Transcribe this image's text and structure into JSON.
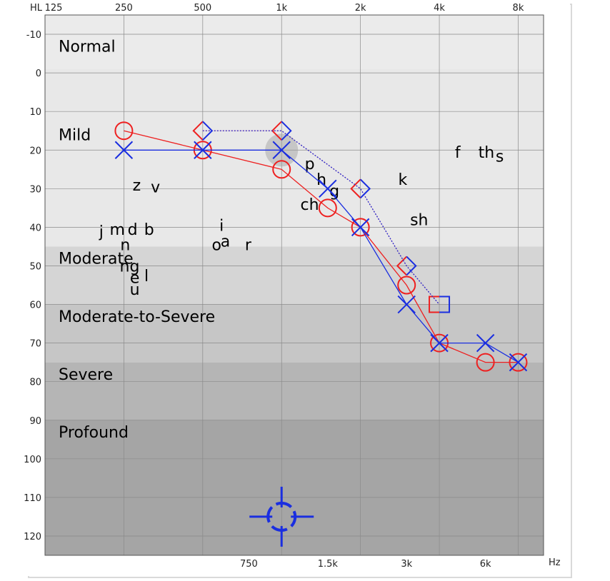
{
  "chart_data": {
    "type": "line",
    "title": "",
    "x_unit_label": "Hz",
    "y_unit_label": "HL",
    "x_scale": "log",
    "xlim": [
      125,
      10000
    ],
    "ylim": [
      -15,
      125
    ],
    "y_reversed": true,
    "grid": true,
    "x_top_ticks": [
      {
        "value": 125,
        "label": "125"
      },
      {
        "value": 250,
        "label": "250"
      },
      {
        "value": 500,
        "label": "500"
      },
      {
        "value": 1000,
        "label": "1k"
      },
      {
        "value": 2000,
        "label": "2k"
      },
      {
        "value": 4000,
        "label": "4k"
      },
      {
        "value": 8000,
        "label": "8k"
      }
    ],
    "x_bottom_ticks": [
      {
        "value": 750,
        "label": "750"
      },
      {
        "value": 1500,
        "label": "1.5k"
      },
      {
        "value": 3000,
        "label": "3k"
      },
      {
        "value": 6000,
        "label": "6k"
      }
    ],
    "y_ticks": [
      -10,
      0,
      10,
      20,
      30,
      40,
      50,
      60,
      70,
      80,
      90,
      100,
      110,
      120
    ],
    "zones": [
      {
        "label": "Normal",
        "from": -15,
        "to": 45,
        "label_y": -7,
        "color": "#e8e8e8"
      },
      {
        "label": "Mild",
        "from": -15,
        "to": 45,
        "label_y": 16,
        "color": "#e8e8e8"
      },
      {
        "label": "Moderate",
        "from": 45,
        "to": 60,
        "label_y": 48,
        "color": "#d5d5d5"
      },
      {
        "label": "Moderate-to-Severe",
        "from": 60,
        "to": 75,
        "label_y": 63,
        "color": "#c6c6c6"
      },
      {
        "label": "Severe",
        "from": 75,
        "to": 90,
        "label_y": 78,
        "color": "#b5b5b5"
      },
      {
        "label": "Profound",
        "from": 90,
        "to": 125,
        "label_y": 93,
        "color": "#a5a5a5"
      }
    ],
    "series": [
      {
        "marker": "circle",
        "line_style": "solid",
        "color": "#ee2020",
        "points": [
          [
            250,
            15
          ],
          [
            500,
            20
          ],
          [
            1000,
            25
          ],
          [
            1500,
            35
          ],
          [
            2000,
            40
          ],
          [
            3000,
            55
          ],
          [
            4000,
            70
          ],
          [
            6000,
            75
          ],
          [
            8000,
            75
          ]
        ]
      },
      {
        "marker": "cross",
        "line_style": "solid",
        "color": "#1a2ee0",
        "points": [
          [
            250,
            20
          ],
          [
            500,
            20
          ],
          [
            1000,
            20
          ],
          [
            1500,
            30
          ],
          [
            2000,
            40
          ],
          [
            3000,
            60
          ],
          [
            4000,
            70
          ],
          [
            6000,
            70
          ],
          [
            8000,
            75
          ]
        ]
      },
      {
        "marker": "bracket-left",
        "line_style": "dotted",
        "color": "#ee2020",
        "points": [
          [
            500,
            15
          ],
          [
            1000,
            15
          ],
          [
            2000,
            30
          ],
          [
            3000,
            50
          ],
          [
            4000,
            60
          ]
        ]
      },
      {
        "marker": "bracket-right",
        "line_style": "dotted",
        "color": "#1a2ee0",
        "points": [
          [
            500,
            15
          ],
          [
            1000,
            15
          ],
          [
            2000,
            30
          ],
          [
            3000,
            50
          ],
          [
            4000,
            60
          ]
        ]
      }
    ],
    "speech_sounds": [
      {
        "text": "z",
        "x": 280,
        "y": 29
      },
      {
        "text": "v",
        "x": 330,
        "y": 29.5
      },
      {
        "text": "j",
        "x": 205,
        "y": 41
      },
      {
        "text": "m",
        "x": 236,
        "y": 40.5
      },
      {
        "text": "d",
        "x": 270,
        "y": 40.5
      },
      {
        "text": "b",
        "x": 312,
        "y": 40.5
      },
      {
        "text": "n",
        "x": 253,
        "y": 44.5
      },
      {
        "text": "ng",
        "x": 263,
        "y": 50
      },
      {
        "text": "e",
        "x": 275,
        "y": 53
      },
      {
        "text": "l",
        "x": 305,
        "y": 52.5
      },
      {
        "text": "u",
        "x": 275,
        "y": 56
      },
      {
        "text": "i",
        "x": 590,
        "y": 39.5
      },
      {
        "text": "o",
        "x": 565,
        "y": 44.5
      },
      {
        "text": "a",
        "x": 610,
        "y": 43.5
      },
      {
        "text": "r",
        "x": 745,
        "y": 44.5
      },
      {
        "text": "p",
        "x": 1280,
        "y": 23.5
      },
      {
        "text": "h",
        "x": 1420,
        "y": 27.5
      },
      {
        "text": "g",
        "x": 1590,
        "y": 30.5
      },
      {
        "text": "ch",
        "x": 1280,
        "y": 34
      },
      {
        "text": "k",
        "x": 2900,
        "y": 27.5
      },
      {
        "text": "sh",
        "x": 3350,
        "y": 38
      },
      {
        "text": "f",
        "x": 4700,
        "y": 20.5
      },
      {
        "text": "th",
        "x": 6050,
        "y": 20.5
      },
      {
        "text": "s",
        "x": 6800,
        "y": 21.5
      }
    ],
    "highlight": {
      "x": 1000,
      "y": 20
    },
    "target_cursor": {
      "x": 1000,
      "y": 115
    }
  }
}
